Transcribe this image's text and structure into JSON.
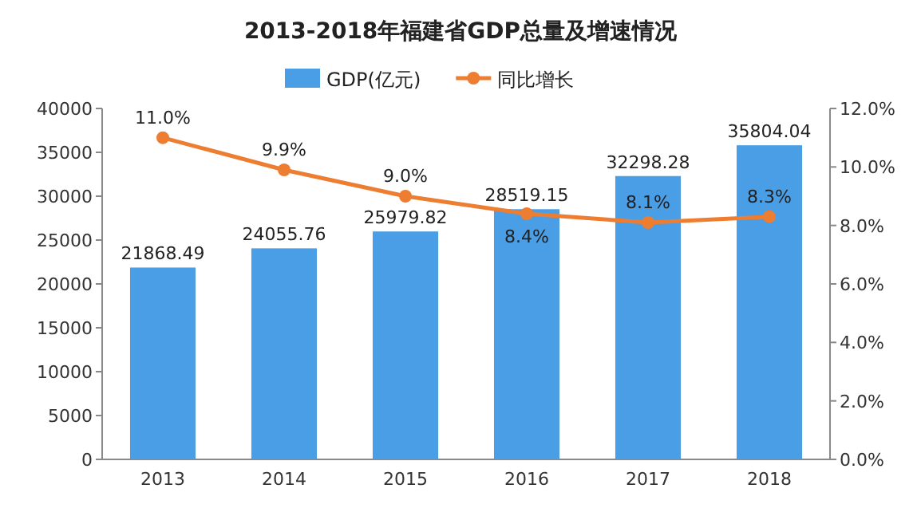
{
  "chart_data": {
    "type": "bar",
    "title": "2013-2018年福建省GDP总量及增速情况",
    "categories": [
      "2013",
      "2014",
      "2015",
      "2016",
      "2017",
      "2018"
    ],
    "series": [
      {
        "name": "GDP(亿元)",
        "color": "#4a9ee6",
        "values": [
          21868.49,
          24055.76,
          25979.82,
          28519.15,
          32298.28,
          35804.04
        ]
      },
      {
        "name": "同比增长",
        "type": "line",
        "axis": "y2",
        "color": "#ed7d31",
        "marker": "circle",
        "values": [
          11.0,
          9.9,
          9.0,
          8.4,
          8.1,
          8.3
        ],
        "value_labels": [
          "11.0%",
          "9.9%",
          "9.0%",
          "8.4%",
          "8.1%",
          "8.3%"
        ]
      }
    ],
    "data_labels": true,
    "ylim": [
      0,
      40000
    ],
    "yticks": [
      0,
      5000,
      10000,
      15000,
      20000,
      25000,
      30000,
      35000,
      40000
    ],
    "y2lim": [
      0,
      12
    ],
    "y2ticks": [
      {
        "value": 0,
        "label": "0.0%"
      },
      {
        "value": 2,
        "label": "2.0%"
      },
      {
        "value": 4,
        "label": "4.0%"
      },
      {
        "value": 6,
        "label": "6.0%"
      },
      {
        "value": 8,
        "label": "8.0%"
      },
      {
        "value": 10,
        "label": "10.0%"
      },
      {
        "value": 12,
        "label": "12.0%"
      }
    ],
    "legend": "top",
    "grid": false
  }
}
